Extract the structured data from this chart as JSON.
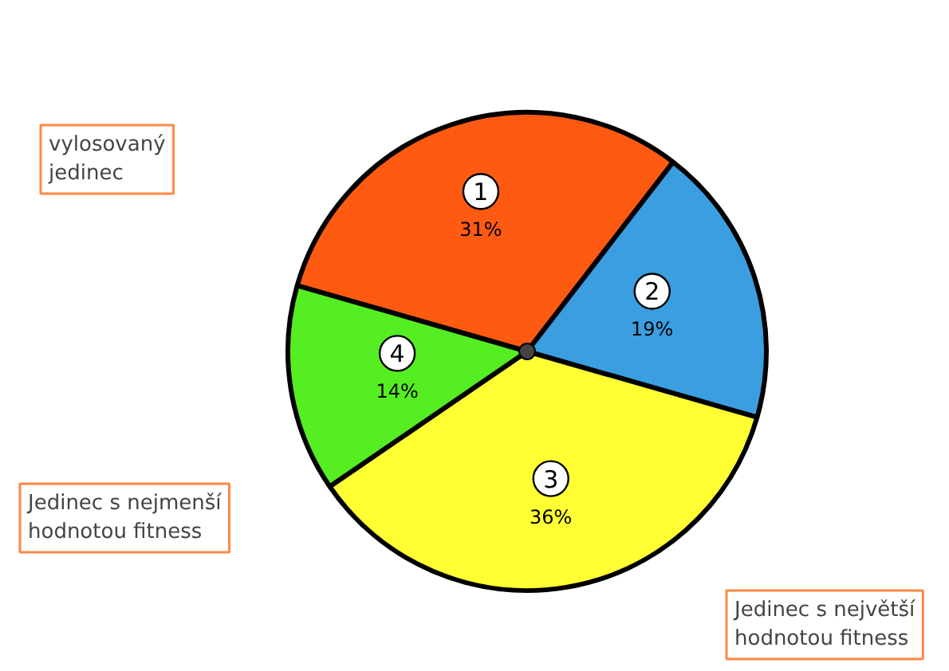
{
  "chart_data": {
    "type": "pie",
    "categories": [
      "1",
      "2",
      "3",
      "4"
    ],
    "values": [
      31,
      19,
      36,
      14
    ],
    "colors": [
      "#ff5a12",
      "#3a9ee0",
      "#ffff33",
      "#55ee22"
    ],
    "value_labels": [
      "31%",
      "19%",
      "36%",
      "14%"
    ],
    "annotations": [
      "vylosovaný\njedinec",
      "Jedinec s nejmenší\nhodnotou fitness",
      "Jedinec s největší\nhodnotou fitness"
    ]
  }
}
